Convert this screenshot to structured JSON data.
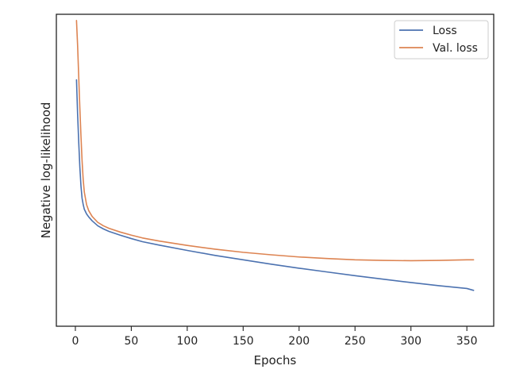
{
  "chart_data": {
    "type": "line",
    "title": "",
    "xlabel": "Epochs",
    "ylabel": "Negative log-likelihood",
    "xlim": [
      -17,
      374
    ],
    "ylim": [
      0,
      1
    ],
    "xticks": [
      0,
      50,
      100,
      150,
      200,
      250,
      300,
      350
    ],
    "yticks_shown": false,
    "grid": false,
    "legend": "top-right",
    "series": [
      {
        "name": "Loss",
        "color": "#4C72B0",
        "x": [
          1,
          2,
          3,
          4,
          5,
          6,
          7,
          8,
          10,
          12,
          15,
          20,
          25,
          30,
          40,
          50,
          60,
          75,
          100,
          125,
          150,
          175,
          200,
          225,
          250,
          275,
          300,
          325,
          350,
          356
        ],
        "values": [
          0.79,
          0.68,
          0.59,
          0.51,
          0.45,
          0.41,
          0.39,
          0.375,
          0.36,
          0.35,
          0.338,
          0.322,
          0.312,
          0.304,
          0.292,
          0.281,
          0.271,
          0.26,
          0.243,
          0.227,
          0.213,
          0.199,
          0.186,
          0.174,
          0.162,
          0.151,
          0.14,
          0.13,
          0.121,
          0.115
        ]
      },
      {
        "name": "Val. loss",
        "color": "#DD8452",
        "x": [
          1,
          2,
          3,
          4,
          5,
          6,
          7,
          8,
          10,
          12,
          15,
          20,
          25,
          30,
          40,
          50,
          60,
          75,
          100,
          125,
          150,
          175,
          200,
          225,
          250,
          275,
          300,
          325,
          350,
          356
        ],
        "values": [
          0.98,
          0.9,
          0.8,
          0.7,
          0.61,
          0.53,
          0.47,
          0.43,
          0.39,
          0.37,
          0.352,
          0.333,
          0.322,
          0.314,
          0.302,
          0.292,
          0.283,
          0.273,
          0.259,
          0.247,
          0.237,
          0.229,
          0.222,
          0.217,
          0.213,
          0.211,
          0.21,
          0.211,
          0.213,
          0.213
        ]
      }
    ]
  }
}
